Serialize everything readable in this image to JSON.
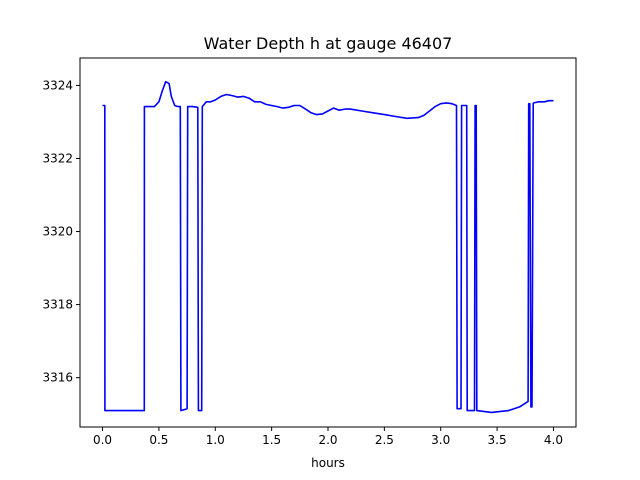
{
  "chart_data": {
    "type": "line",
    "title": "Water Depth h at gauge 46407",
    "xlabel": "hours",
    "ylabel": "",
    "xlim": [
      -0.2,
      4.2
    ],
    "ylim": [
      3314.65,
      3324.75
    ],
    "xticks": [
      0.0,
      0.5,
      1.0,
      1.5,
      2.0,
      2.5,
      3.0,
      3.5,
      4.0
    ],
    "xtick_labels": [
      "0.0",
      "0.5",
      "1.0",
      "1.5",
      "2.0",
      "2.5",
      "3.0",
      "3.5",
      "4.0"
    ],
    "yticks": [
      3316,
      3318,
      3320,
      3322,
      3324
    ],
    "ytick_labels": [
      "3316",
      "3318",
      "3320",
      "3322",
      "3324"
    ],
    "grid": false,
    "series": [
      {
        "color": "#0000ff",
        "x": [
          0.0,
          0.02,
          0.021,
          0.37,
          0.371,
          0.41,
          0.46,
          0.5,
          0.53,
          0.56,
          0.59,
          0.61,
          0.64,
          0.67,
          0.69,
          0.695,
          0.75,
          0.755,
          0.8,
          0.845,
          0.85,
          0.88,
          0.885,
          0.92,
          0.96,
          1.0,
          1.05,
          1.1,
          1.15,
          1.2,
          1.25,
          1.3,
          1.35,
          1.4,
          1.45,
          1.5,
          1.55,
          1.6,
          1.65,
          1.7,
          1.75,
          1.8,
          1.85,
          1.9,
          1.95,
          2.0,
          2.05,
          2.1,
          2.15,
          2.2,
          2.3,
          2.4,
          2.5,
          2.6,
          2.7,
          2.8,
          2.85,
          2.9,
          2.95,
          3.0,
          3.05,
          3.1,
          3.14,
          3.145,
          3.18,
          3.185,
          3.23,
          3.235,
          3.3,
          3.305,
          3.315,
          3.32,
          3.45,
          3.6,
          3.7,
          3.775,
          3.78,
          3.79,
          3.8,
          3.81,
          3.82,
          3.825,
          3.87,
          3.92,
          3.96,
          4.0
        ],
        "values": [
          3323.45,
          3323.45,
          3315.1,
          3315.1,
          3323.42,
          3323.42,
          3323.42,
          3323.55,
          3323.85,
          3324.1,
          3324.05,
          3323.7,
          3323.45,
          3323.42,
          3323.42,
          3315.1,
          3315.15,
          3323.42,
          3323.42,
          3323.4,
          3315.1,
          3315.1,
          3323.42,
          3323.55,
          3323.55,
          3323.6,
          3323.7,
          3323.75,
          3323.72,
          3323.68,
          3323.7,
          3323.65,
          3323.55,
          3323.55,
          3323.48,
          3323.45,
          3323.42,
          3323.38,
          3323.4,
          3323.45,
          3323.45,
          3323.35,
          3323.25,
          3323.2,
          3323.22,
          3323.3,
          3323.38,
          3323.32,
          3323.35,
          3323.35,
          3323.3,
          3323.25,
          3323.2,
          3323.15,
          3323.1,
          3323.12,
          3323.18,
          3323.3,
          3323.42,
          3323.5,
          3323.52,
          3323.5,
          3323.45,
          3315.15,
          3315.15,
          3323.45,
          3323.45,
          3315.1,
          3315.1,
          3323.45,
          3323.45,
          3315.1,
          3315.05,
          3315.1,
          3315.2,
          3315.35,
          3323.5,
          3323.5,
          3315.2,
          3315.2,
          3323.5,
          3323.52,
          3323.55,
          3323.55,
          3323.58,
          3323.58
        ]
      }
    ]
  }
}
